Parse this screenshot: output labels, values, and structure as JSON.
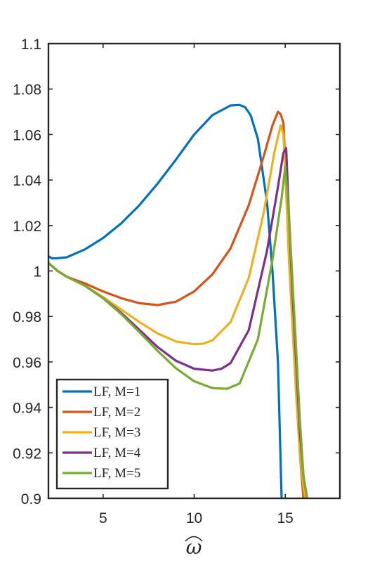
{
  "chart_data": {
    "type": "line",
    "title": "",
    "xlabel": "ω̂",
    "ylabel": "",
    "xlim": [
      2,
      18
    ],
    "ylim": [
      0.9,
      1.1
    ],
    "xticks": [
      5,
      10,
      15
    ],
    "xtick_labels": [
      "5",
      "10",
      "15"
    ],
    "yticks": [
      0.9,
      0.92,
      0.94,
      0.96,
      0.98,
      1.0,
      1.02,
      1.04,
      1.06,
      1.08,
      1.1
    ],
    "ytick_labels": [
      "0.9",
      "0.92",
      "0.94",
      "0.96",
      "0.98",
      "1",
      "1.02",
      "1.04",
      "1.06",
      "1.08",
      "1.1"
    ],
    "grid": false,
    "legend_position": "bottom-left",
    "series": [
      {
        "name": "LF, M=1",
        "color": "#0072BD",
        "x": [
          2.0,
          2.2,
          2.5,
          3.0,
          4.0,
          5.0,
          6.0,
          7.0,
          8.0,
          9.0,
          10.0,
          11.0,
          12.0,
          12.5,
          12.8,
          13.1,
          13.5,
          14.0,
          14.3,
          14.6,
          14.8
        ],
        "y": [
          1.0065,
          1.0055,
          1.0056,
          1.006,
          1.0095,
          1.0145,
          1.021,
          1.029,
          1.0385,
          1.049,
          1.06,
          1.0685,
          1.0728,
          1.073,
          1.072,
          1.0685,
          1.058,
          1.03,
          1.0,
          0.96,
          0.9
        ]
      },
      {
        "name": "LF, M=2",
        "color": "#D95319",
        "x": [
          2.0,
          2.5,
          3.0,
          4.0,
          5.0,
          6.0,
          7.0,
          8.0,
          9.0,
          10.0,
          11.0,
          12.0,
          13.0,
          13.8,
          14.3,
          14.6,
          14.75,
          14.9,
          15.05,
          15.2,
          15.4,
          15.6,
          15.8,
          16.0
        ],
        "y": [
          1.0035,
          1.0,
          0.9975,
          0.9945,
          0.991,
          0.988,
          0.9858,
          0.985,
          0.9865,
          0.991,
          0.9985,
          1.01,
          1.029,
          1.05,
          1.064,
          1.07,
          1.069,
          1.065,
          1.04,
          1.01,
          0.98,
          0.95,
          0.92,
          0.9
        ]
      },
      {
        "name": "LF, M=3",
        "color": "#EDB120",
        "x": [
          2.0,
          2.5,
          3.0,
          4.0,
          5.0,
          6.0,
          7.0,
          8.0,
          9.0,
          10.0,
          10.5,
          11.0,
          12.0,
          13.0,
          13.8,
          14.4,
          14.75,
          14.9,
          15.05,
          15.2,
          15.4,
          15.6,
          15.8,
          16.0,
          16.1
        ],
        "y": [
          1.0035,
          1.0,
          0.9975,
          0.9935,
          0.9885,
          0.983,
          0.9775,
          0.9725,
          0.969,
          0.9678,
          0.968,
          0.9695,
          0.9775,
          0.997,
          1.025,
          1.052,
          1.064,
          1.06,
          1.035,
          1.005,
          0.975,
          0.945,
          0.92,
          0.905,
          0.9
        ]
      },
      {
        "name": "LF, M=4",
        "color": "#7E2F8E",
        "x": [
          2.0,
          2.5,
          3.0,
          4.0,
          5.0,
          6.0,
          7.0,
          8.0,
          9.0,
          10.0,
          11.0,
          11.5,
          12.0,
          13.0,
          14.0,
          14.6,
          14.9,
          15.05,
          15.2,
          15.4,
          15.6,
          15.8,
          16.0,
          16.2
        ],
        "y": [
          1.0035,
          1.0,
          0.9975,
          0.9935,
          0.988,
          0.9815,
          0.974,
          0.9665,
          0.9605,
          0.957,
          0.9562,
          0.957,
          0.9595,
          0.974,
          1.009,
          1.037,
          1.052,
          1.054,
          1.025,
          0.99,
          0.96,
          0.93,
          0.91,
          0.9
        ]
      },
      {
        "name": "LF, M=5",
        "color": "#77AC30",
        "x": [
          2.0,
          2.5,
          3.0,
          4.0,
          5.0,
          6.0,
          7.0,
          8.0,
          9.0,
          10.0,
          11.0,
          11.8,
          12.5,
          13.5,
          14.3,
          14.8,
          15.0,
          15.2,
          15.4,
          15.6,
          15.8,
          16.0,
          16.2
        ],
        "y": [
          1.0035,
          1.0,
          0.9975,
          0.9935,
          0.988,
          0.981,
          0.973,
          0.9648,
          0.9572,
          0.9515,
          0.9485,
          0.9482,
          0.9505,
          0.97,
          1.005,
          1.032,
          1.046,
          1.025,
          0.995,
          0.965,
          0.935,
          0.91,
          0.9
        ]
      }
    ]
  }
}
